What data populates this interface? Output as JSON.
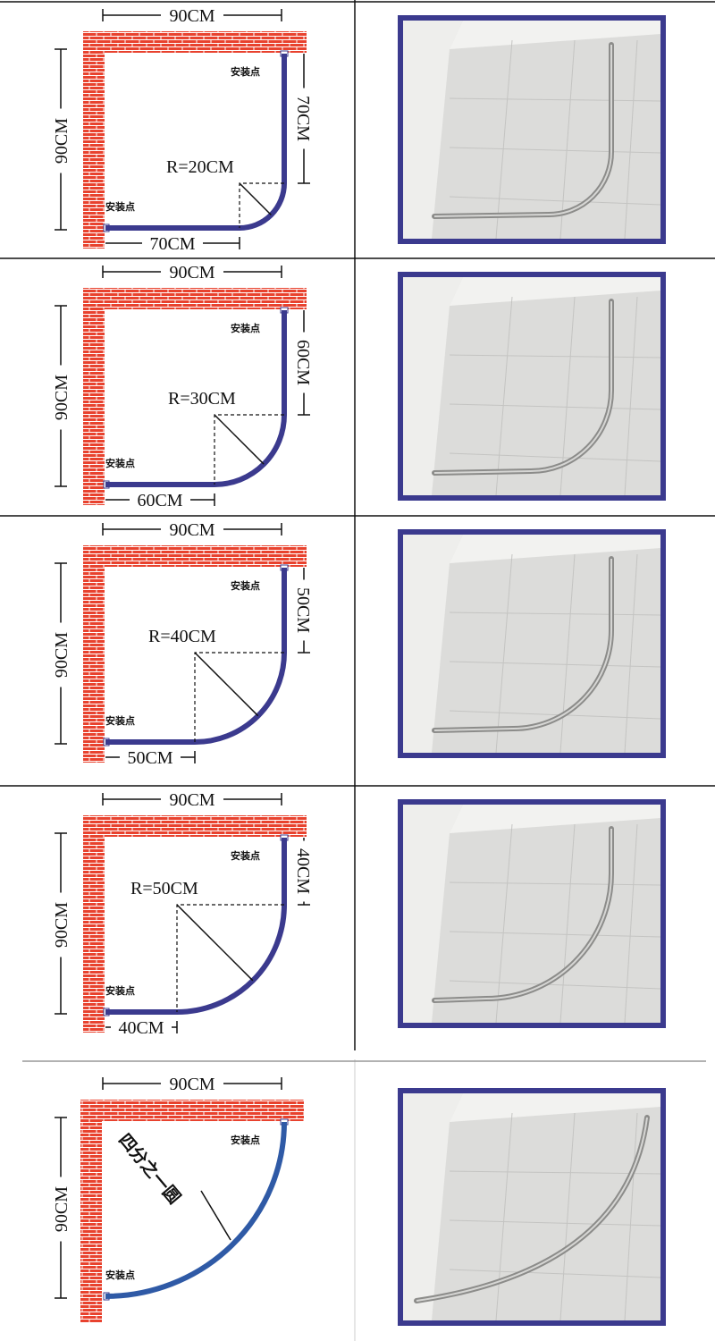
{
  "rows": [
    {
      "top_width": "90CM",
      "left_height": "90CM",
      "right_length": "70CM",
      "bottom_length": "70CM",
      "radius": "R=20CM",
      "mount_top": "安装点",
      "mount_bottom": "安装点"
    },
    {
      "top_width": "90CM",
      "left_height": "90CM",
      "right_length": "60CM",
      "bottom_length": "60CM",
      "radius": "R=30CM",
      "mount_top": "安装点",
      "mount_bottom": "安装点"
    },
    {
      "top_width": "90CM",
      "left_height": "90CM",
      "right_length": "50CM",
      "bottom_length": "50CM",
      "radius": "R=40CM",
      "mount_top": "安装点",
      "mount_bottom": "安装点"
    },
    {
      "top_width": "90CM",
      "left_height": "90CM",
      "right_length": "40CM",
      "bottom_length": "40CM",
      "radius": "R=50CM",
      "mount_top": "安装点",
      "mount_bottom": "安装点"
    },
    {
      "top_width": "90CM",
      "left_height": "90CM",
      "label": "四分之一圆",
      "mount_top": "安装点",
      "mount_bottom": "安装点"
    }
  ]
}
